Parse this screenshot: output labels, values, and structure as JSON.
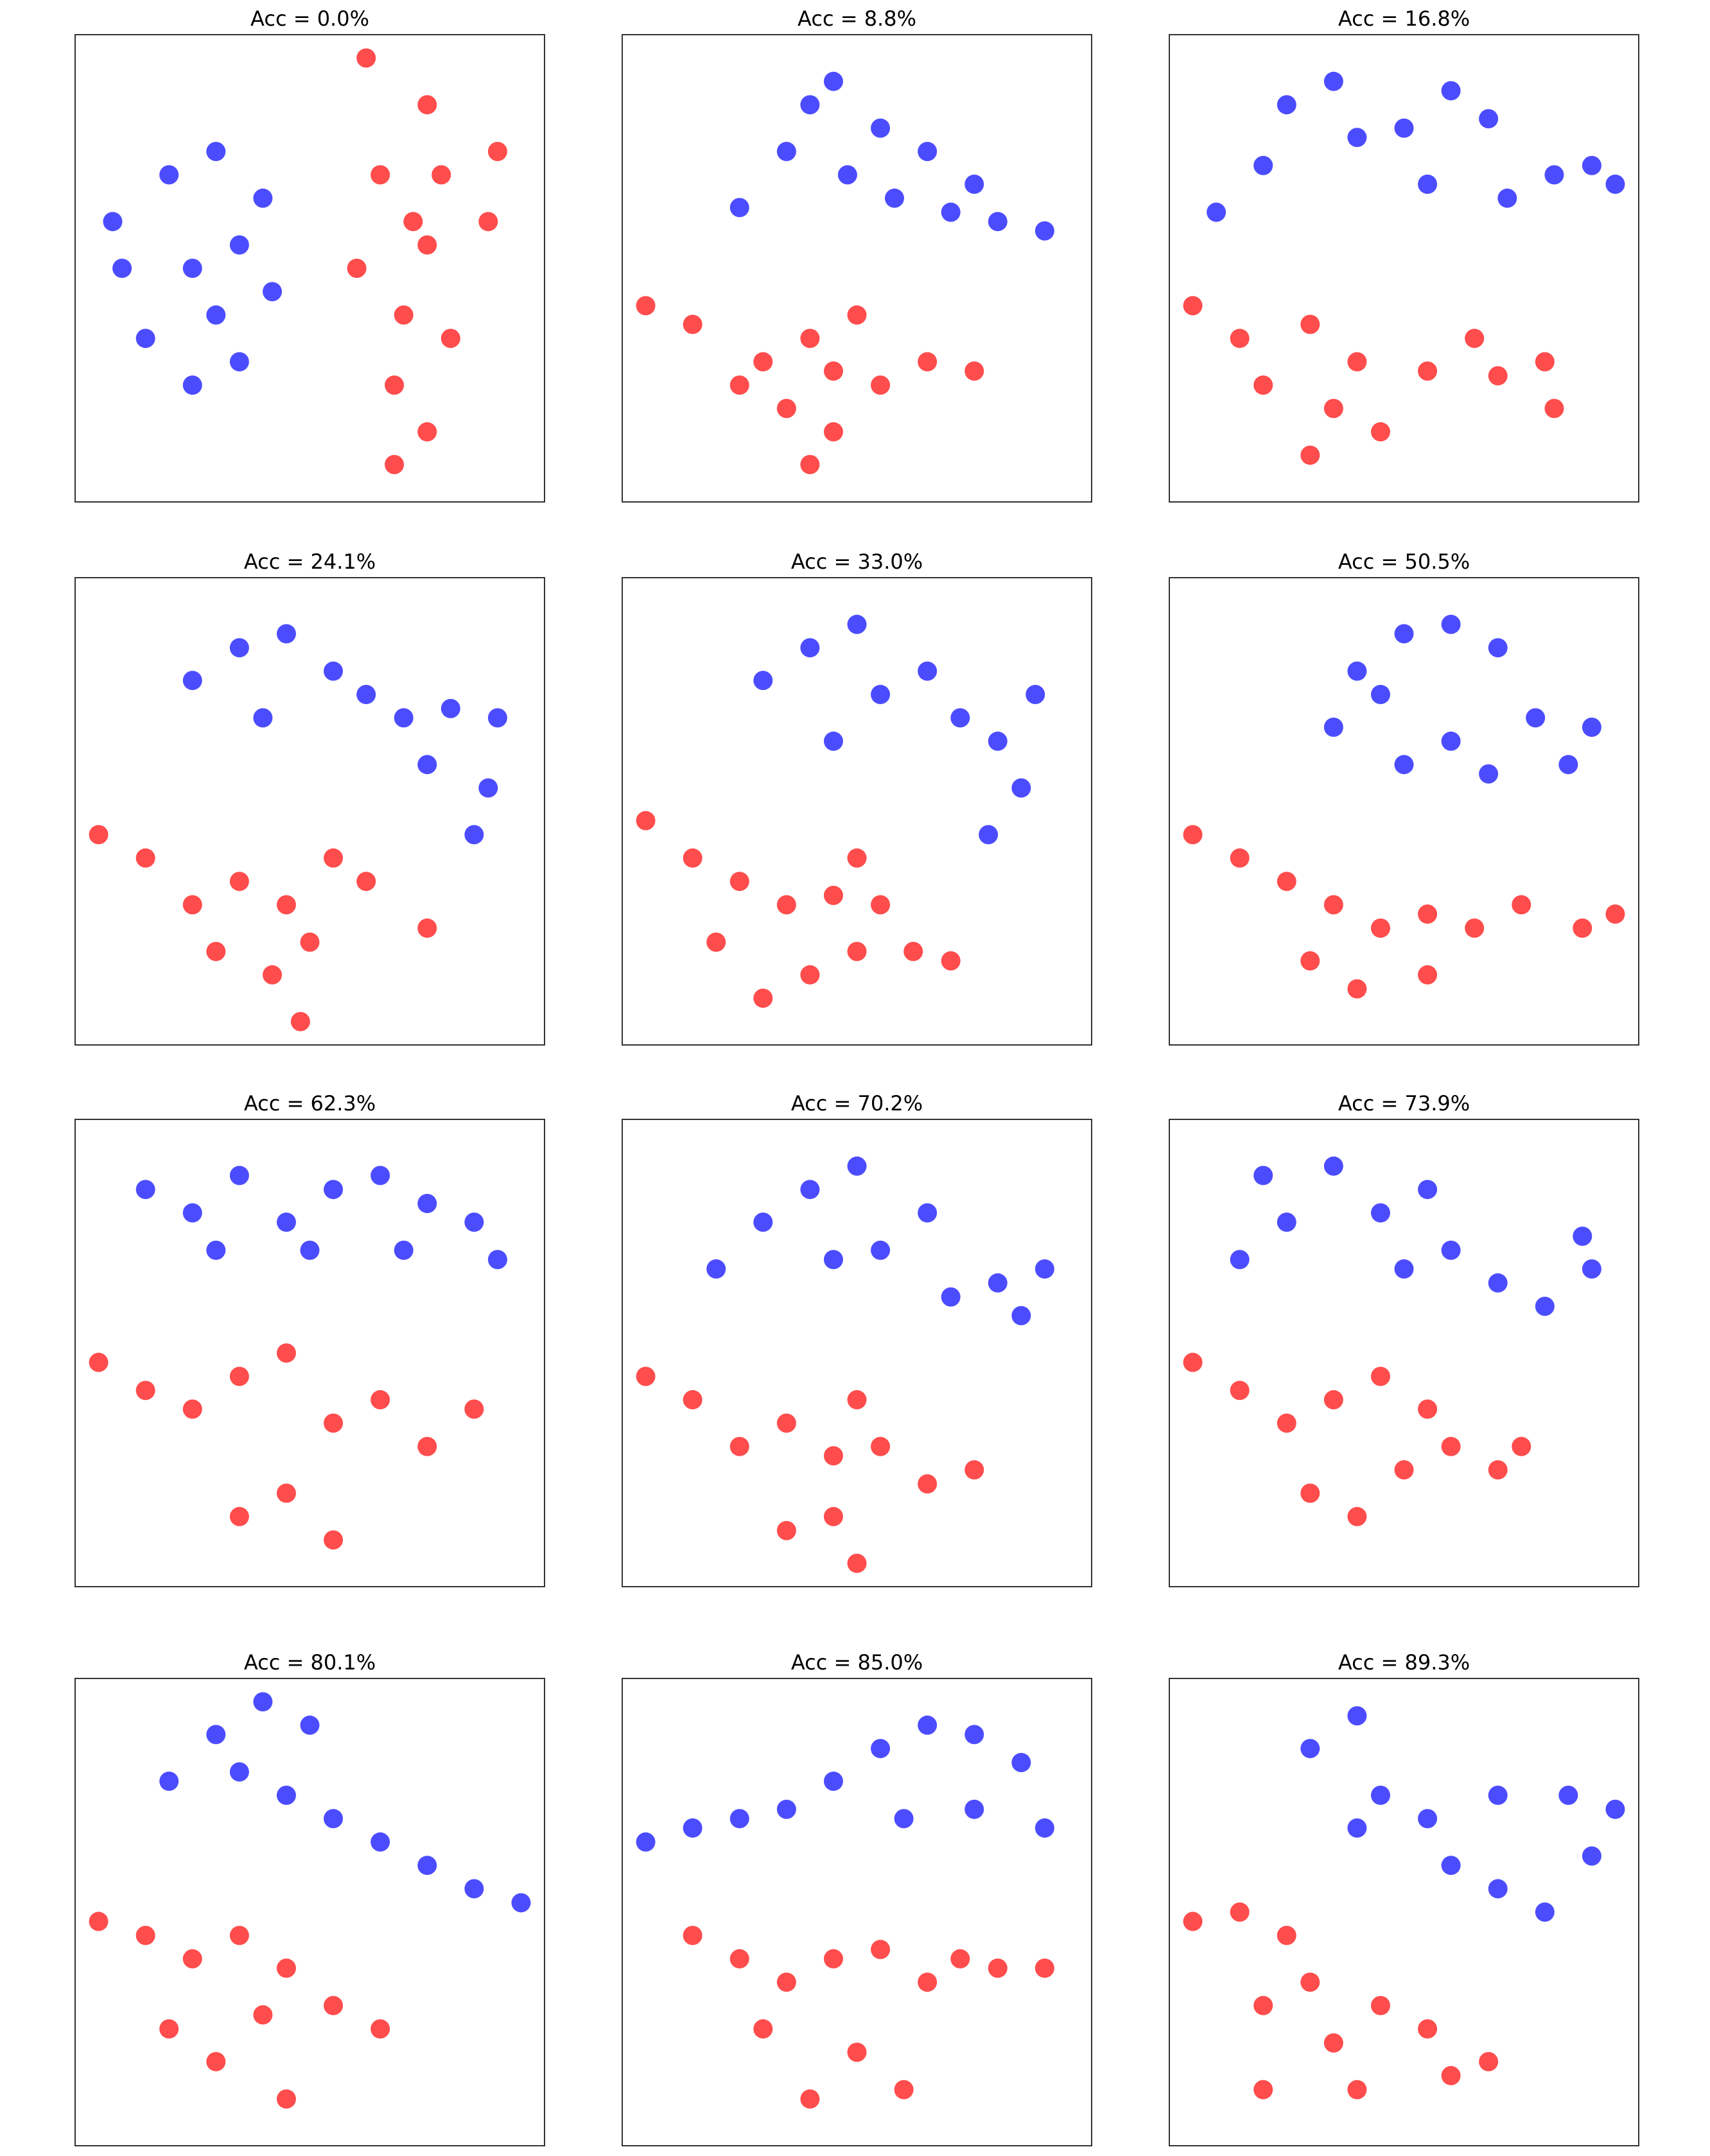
{
  "chart_data": [
    {
      "type": "scatter",
      "title": "Acc = 0.0%",
      "xlim": [
        0,
        100
      ],
      "ylim": [
        0,
        100
      ],
      "series": [
        {
          "color": "#0000ff",
          "x": [
            10,
            20,
            30,
            40,
            42,
            35,
            25,
            15,
            25,
            35,
            8,
            30
          ],
          "y": [
            50,
            70,
            75,
            65,
            45,
            30,
            25,
            35,
            50,
            55,
            60,
            40
          ]
        },
        {
          "color": "#ff0000",
          "x": [
            62,
            75,
            65,
            78,
            88,
            75,
            60,
            70,
            80,
            68,
            75,
            68,
            90,
            72
          ],
          "y": [
            95,
            85,
            70,
            70,
            60,
            55,
            50,
            40,
            35,
            25,
            15,
            8,
            75,
            60
          ]
        }
      ]
    },
    {
      "type": "scatter",
      "title": "Acc = 8.8%",
      "xlim": [
        0,
        100
      ],
      "ylim": [
        0,
        100
      ],
      "series": [
        {
          "color": "#0000ff",
          "x": [
            25,
            35,
            45,
            48,
            55,
            65,
            70,
            80,
            90,
            58,
            40,
            75
          ],
          "y": [
            63,
            75,
            90,
            70,
            80,
            75,
            62,
            60,
            58,
            65,
            85,
            68
          ]
        },
        {
          "color": "#ff0000",
          "x": [
            5,
            15,
            30,
            40,
            45,
            35,
            45,
            55,
            65,
            75,
            40,
            25,
            50
          ],
          "y": [
            42,
            38,
            30,
            35,
            28,
            20,
            15,
            25,
            30,
            28,
            8,
            25,
            40
          ]
        }
      ]
    },
    {
      "type": "scatter",
      "title": "Acc = 16.8%",
      "xlim": [
        0,
        100
      ],
      "ylim": [
        0,
        100
      ],
      "series": [
        {
          "color": "#0000ff",
          "x": [
            10,
            20,
            25,
            35,
            40,
            50,
            55,
            60,
            68,
            72,
            82,
            90,
            95
          ],
          "y": [
            62,
            72,
            85,
            90,
            78,
            80,
            68,
            88,
            82,
            65,
            70,
            72,
            68
          ]
        },
        {
          "color": "#ff0000",
          "x": [
            5,
            15,
            30,
            40,
            35,
            45,
            30,
            55,
            65,
            70,
            80,
            82,
            20
          ],
          "y": [
            42,
            35,
            38,
            30,
            20,
            15,
            10,
            28,
            35,
            27,
            30,
            20,
            25
          ]
        }
      ]
    },
    {
      "type": "scatter",
      "title": "Acc = 24.1%",
      "xlim": [
        0,
        100
      ],
      "ylim": [
        0,
        100
      ],
      "series": [
        {
          "color": "#0000ff",
          "x": [
            25,
            35,
            45,
            55,
            62,
            70,
            80,
            90,
            88,
            85,
            40,
            75
          ],
          "y": [
            78,
            85,
            88,
            80,
            75,
            70,
            72,
            70,
            55,
            45,
            70,
            60
          ]
        },
        {
          "color": "#ff0000",
          "x": [
            5,
            15,
            25,
            35,
            45,
            50,
            42,
            55,
            62,
            75,
            30,
            48
          ],
          "y": [
            45,
            40,
            30,
            35,
            30,
            22,
            15,
            40,
            35,
            25,
            20,
            5
          ]
        }
      ]
    },
    {
      "type": "scatter",
      "title": "Acc = 33.0%",
      "xlim": [
        0,
        100
      ],
      "ylim": [
        0,
        100
      ],
      "series": [
        {
          "color": "#0000ff",
          "x": [
            30,
            40,
            50,
            55,
            65,
            72,
            80,
            85,
            78,
            88,
            45
          ],
          "y": [
            78,
            85,
            90,
            75,
            80,
            70,
            65,
            55,
            45,
            75,
            65
          ]
        },
        {
          "color": "#ff0000",
          "x": [
            5,
            15,
            25,
            35,
            45,
            50,
            55,
            50,
            40,
            30,
            62,
            70,
            20
          ],
          "y": [
            48,
            40,
            35,
            30,
            32,
            40,
            30,
            20,
            15,
            10,
            20,
            18,
            22
          ]
        }
      ]
    },
    {
      "type": "scatter",
      "title": "Acc = 50.5%",
      "xlim": [
        0,
        100
      ],
      "ylim": [
        0,
        100
      ],
      "series": [
        {
          "color": "#0000ff",
          "x": [
            35,
            45,
            50,
            60,
            70,
            78,
            90,
            60,
            50,
            68,
            85,
            40
          ],
          "y": [
            68,
            75,
            88,
            90,
            85,
            70,
            68,
            65,
            60,
            58,
            60,
            80
          ]
        },
        {
          "color": "#ff0000",
          "x": [
            5,
            15,
            25,
            35,
            45,
            55,
            65,
            75,
            88,
            95,
            40,
            30,
            55
          ],
          "y": [
            45,
            40,
            35,
            30,
            25,
            28,
            25,
            30,
            25,
            28,
            12,
            18,
            15
          ]
        }
      ]
    },
    {
      "type": "scatter",
      "title": "Acc = 62.3%",
      "xlim": [
        0,
        100
      ],
      "ylim": [
        0,
        100
      ],
      "series": [
        {
          "color": "#0000ff",
          "x": [
            15,
            25,
            35,
            45,
            55,
            65,
            75,
            85,
            90,
            70,
            30,
            50
          ],
          "y": [
            85,
            80,
            88,
            78,
            85,
            88,
            82,
            78,
            70,
            72,
            72,
            72
          ]
        },
        {
          "color": "#ff0000",
          "x": [
            5,
            15,
            25,
            35,
            45,
            55,
            65,
            75,
            85,
            45,
            55,
            35
          ],
          "y": [
            48,
            42,
            38,
            45,
            50,
            35,
            40,
            30,
            38,
            20,
            10,
            15
          ]
        }
      ]
    },
    {
      "type": "scatter",
      "title": "Acc = 70.2%",
      "xlim": [
        0,
        100
      ],
      "ylim": [
        0,
        100
      ],
      "series": [
        {
          "color": "#0000ff",
          "x": [
            20,
            30,
            40,
            50,
            55,
            65,
            70,
            80,
            90,
            85,
            45
          ],
          "y": [
            68,
            78,
            85,
            90,
            72,
            80,
            62,
            65,
            68,
            58,
            70
          ]
        },
        {
          "color": "#ff0000",
          "x": [
            5,
            15,
            25,
            35,
            45,
            50,
            55,
            45,
            35,
            65,
            75,
            50
          ],
          "y": [
            45,
            40,
            30,
            35,
            28,
            40,
            30,
            15,
            12,
            22,
            25,
            5
          ]
        }
      ]
    },
    {
      "type": "scatter",
      "title": "Acc = 73.9%",
      "xlim": [
        0,
        100
      ],
      "ylim": [
        0,
        100
      ],
      "series": [
        {
          "color": "#0000ff",
          "x": [
            15,
            25,
            20,
            35,
            45,
            55,
            60,
            70,
            80,
            90,
            88,
            50
          ],
          "y": [
            70,
            78,
            88,
            90,
            80,
            85,
            72,
            65,
            60,
            68,
            75,
            68
          ]
        },
        {
          "color": "#ff0000",
          "x": [
            5,
            15,
            25,
            35,
            45,
            55,
            60,
            50,
            40,
            30,
            70,
            75
          ],
          "y": [
            48,
            42,
            35,
            40,
            45,
            38,
            30,
            25,
            15,
            20,
            25,
            30
          ]
        }
      ]
    },
    {
      "type": "scatter",
      "title": "Acc = 80.1%",
      "xlim": [
        0,
        100
      ],
      "ylim": [
        0,
        100
      ],
      "series": [
        {
          "color": "#0000ff",
          "x": [
            20,
            30,
            40,
            50,
            45,
            55,
            65,
            75,
            85,
            95,
            35
          ],
          "y": [
            78,
            88,
            95,
            90,
            75,
            70,
            65,
            60,
            55,
            52,
            80
          ]
        },
        {
          "color": "#ff0000",
          "x": [
            5,
            15,
            25,
            35,
            45,
            40,
            30,
            20,
            45,
            55,
            65
          ],
          "y": [
            48,
            45,
            40,
            45,
            38,
            28,
            18,
            25,
            10,
            30,
            25
          ]
        }
      ]
    },
    {
      "type": "scatter",
      "title": "Acc = 85.0%",
      "xlim": [
        0,
        100
      ],
      "ylim": [
        0,
        100
      ],
      "series": [
        {
          "color": "#0000ff",
          "x": [
            5,
            15,
            25,
            35,
            45,
            55,
            65,
            75,
            85,
            90,
            60,
            75
          ],
          "y": [
            65,
            68,
            70,
            72,
            78,
            85,
            90,
            88,
            82,
            68,
            70,
            72
          ]
        },
        {
          "color": "#ff0000",
          "x": [
            15,
            25,
            35,
            45,
            55,
            65,
            72,
            80,
            90,
            50,
            40,
            60,
            30
          ],
          "y": [
            45,
            40,
            35,
            40,
            42,
            35,
            40,
            38,
            38,
            20,
            10,
            12,
            25
          ]
        }
      ]
    },
    {
      "type": "scatter",
      "title": "Acc = 89.3%",
      "xlim": [
        0,
        100
      ],
      "ylim": [
        0,
        100
      ],
      "series": [
        {
          "color": "#0000ff",
          "x": [
            30,
            40,
            45,
            40,
            55,
            60,
            70,
            80,
            90,
            95,
            85,
            70
          ],
          "y": [
            85,
            92,
            75,
            68,
            70,
            60,
            55,
            50,
            62,
            72,
            75,
            75
          ]
        },
        {
          "color": "#ff0000",
          "x": [
            5,
            15,
            25,
            30,
            20,
            35,
            45,
            55,
            40,
            60,
            68,
            20
          ],
          "y": [
            48,
            50,
            45,
            35,
            30,
            22,
            30,
            25,
            12,
            15,
            18,
            12
          ]
        }
      ]
    }
  ]
}
